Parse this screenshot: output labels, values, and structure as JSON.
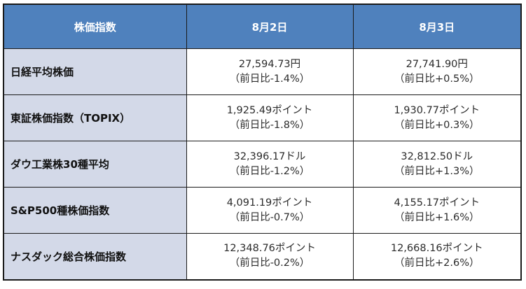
{
  "header": {
    "col_label": "株価指数",
    "dates": [
      "8月2日",
      "8月3日"
    ]
  },
  "rows": [
    {
      "name": "日経平均株価",
      "aug2": {
        "value": "27,594.73円",
        "change": "（前日比-1.4%）"
      },
      "aug3": {
        "value": "27,741.90円",
        "change": "（前日比+0.5%）"
      }
    },
    {
      "name": "東証株価指数（TOPIX）",
      "aug2": {
        "value": "1,925.49ポイント",
        "change": "（前日比-1.8%）"
      },
      "aug3": {
        "value": "1,930.77ポイント",
        "change": "（前日比+0.3%）"
      }
    },
    {
      "name": "ダウ工業株30種平均",
      "aug2": {
        "value": "32,396.17ドル",
        "change": "（前日比-1.2%）"
      },
      "aug3": {
        "value": "32,812.50ドル",
        "change": "（前日比+1.3%）"
      }
    },
    {
      "name": "S&P500種株価指数",
      "aug2": {
        "value": "4,091.19ポイント",
        "change": "（前日比-0.7%）"
      },
      "aug3": {
        "value": "4,155.17ポイント",
        "change": "（前日比+1.6%）"
      }
    },
    {
      "name": "ナスダック総合株価指数",
      "aug2": {
        "value": "12,348.76ポイント",
        "change": "（前日比-0.2%）"
      },
      "aug3": {
        "value": "12,668.16ポイント",
        "change": "（前日比+2.6%）"
      }
    }
  ],
  "colors": {
    "header_bg": "#4f81bd",
    "row_header_bg": "#d3d9e8",
    "border": "#1a1a1a"
  }
}
